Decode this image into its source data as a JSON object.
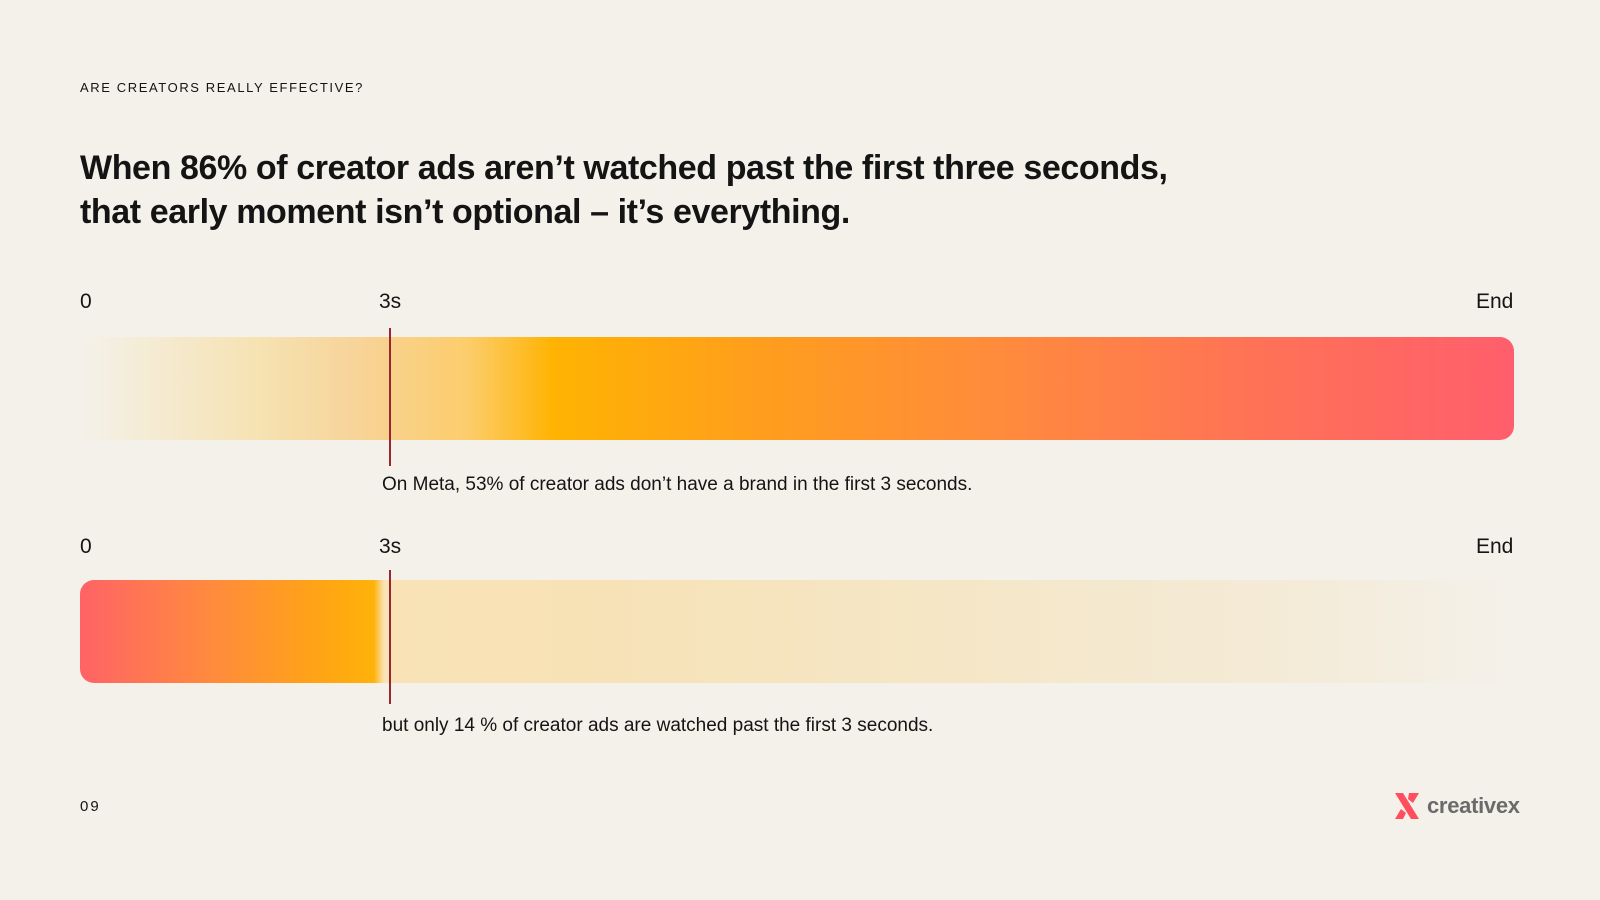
{
  "eyebrow": "ARE CREATORS REALLY EFFECTIVE?",
  "headline": "When 86% of creator ads aren’t watched past the first three seconds, that early moment isn’t optional – it’s everything.",
  "chart_data": [
    {
      "type": "bar",
      "ticks": [
        "0",
        "3s",
        "End"
      ],
      "marker": "3s",
      "annotation": "On Meta, 53% of creator ads don’t have a brand in the first 3 seconds."
    },
    {
      "type": "bar",
      "ticks": [
        "0",
        "3s",
        "End"
      ],
      "marker": "3s",
      "annotation": "but only 14 % of creator ads are watched past the first 3 seconds."
    }
  ],
  "colors": {
    "background": "#f4f1ea",
    "accent_orange": "#ffb302",
    "accent_pink": "#ff5e6c",
    "marker": "#9a2631"
  },
  "footer": {
    "page_number": "09",
    "logo_icon": "creativex-x-icon",
    "logo_text": "creativex"
  }
}
